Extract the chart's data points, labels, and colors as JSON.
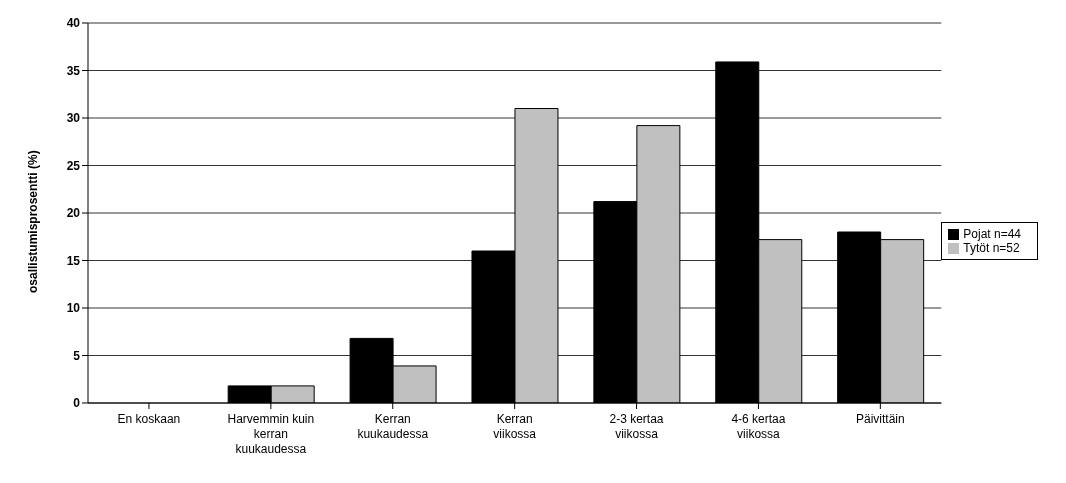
{
  "chart_data": {
    "type": "bar",
    "ylabel": "osallistumisprosentti (%)",
    "categories": [
      "En koskaan",
      "Harvemmin kuin kerran kuukaudessa",
      "Kerran kuukaudessa",
      "Kerran viikossa",
      "2-3 kertaa viikossa",
      "4-6 kertaa viikossa",
      "Päivittäin"
    ],
    "series": [
      {
        "name": "Pojat n=44",
        "color": "#000000",
        "values": [
          0,
          1.8,
          6.8,
          16,
          21.2,
          35.9,
          18
        ]
      },
      {
        "name": "Tytöt n=52",
        "color": "#c0c0c0",
        "values": [
          0,
          1.8,
          3.9,
          31,
          29.2,
          17.2,
          17.2
        ]
      }
    ],
    "ylim": [
      0,
      40
    ],
    "yticks": [
      0,
      5,
      10,
      15,
      20,
      25,
      30,
      35,
      40
    ],
    "grid": "y",
    "legend": "right"
  }
}
